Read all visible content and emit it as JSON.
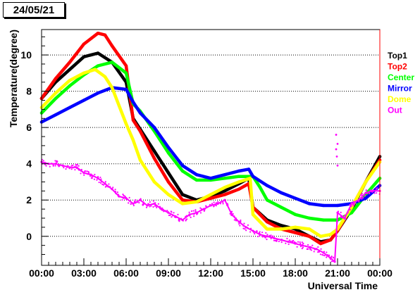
{
  "date_label": "24/05/21",
  "chart_data": {
    "type": "scatter",
    "title": "",
    "xlabel": "Universal Time",
    "ylabel": "Temperature(degree)",
    "xlim": [
      0,
      24
    ],
    "ylim": [
      -1.6,
      11.4
    ],
    "grid": "horizontal dotted",
    "x_ticks": [
      0,
      3,
      6,
      9,
      12,
      15,
      18,
      21,
      24
    ],
    "x_tick_labels": [
      "00:00",
      "03:00",
      "06:00",
      "09:00",
      "12:00",
      "15:00",
      "18:00",
      "21:00",
      "00:00"
    ],
    "y_ticks": [
      0,
      2,
      4,
      6,
      8,
      10
    ],
    "y_tick_labels": [
      "0",
      "2",
      "4",
      "6",
      "8",
      "10"
    ],
    "legend_position": "right",
    "series": [
      {
        "name": "Top1",
        "color": "#000000",
        "x": [
          0,
          1,
          2,
          3,
          4,
          5,
          6,
          6.5,
          7,
          8,
          9,
          10,
          11,
          12,
          13,
          14,
          14.7,
          15,
          16,
          17,
          18,
          19,
          19.8,
          20.5,
          21,
          22,
          23,
          24
        ],
        "y": [
          7.6,
          8.5,
          9.2,
          9.9,
          10.1,
          9.6,
          8.5,
          6.5,
          5.9,
          4.7,
          3.5,
          2.3,
          2.0,
          2.2,
          2.5,
          2.9,
          3.2,
          1.6,
          0.9,
          0.6,
          0.4,
          0.0,
          -0.3,
          -0.2,
          0.3,
          1.5,
          3.0,
          4.4
        ]
      },
      {
        "name": "Top2",
        "color": "#ff0000",
        "x": [
          0,
          1,
          2,
          3,
          4,
          4.5,
          5,
          6,
          6.5,
          7,
          8,
          9,
          10,
          11,
          12,
          13,
          14,
          14.7,
          15,
          16,
          17,
          18,
          19,
          19.8,
          20.5,
          21,
          22,
          23,
          24
        ],
        "y": [
          7.6,
          8.7,
          9.6,
          10.6,
          11.2,
          11.1,
          10.5,
          9.4,
          6.4,
          5.8,
          4.3,
          3.0,
          2.0,
          1.9,
          2.1,
          2.3,
          2.6,
          2.9,
          1.6,
          0.8,
          0.4,
          0.2,
          0.0,
          -0.4,
          -0.2,
          0.3,
          1.6,
          3.0,
          4.2
        ]
      },
      {
        "name": "Center",
        "color": "#00ff00",
        "x": [
          0,
          1,
          2,
          3,
          4,
          5,
          6,
          6.5,
          7,
          8,
          9,
          10,
          11,
          12,
          13,
          14,
          15,
          15.5,
          16,
          17,
          18,
          19,
          20,
          21,
          22,
          23,
          24
        ],
        "y": [
          6.8,
          7.6,
          8.3,
          8.9,
          9.4,
          9.6,
          9.0,
          7.3,
          6.9,
          5.8,
          4.6,
          3.6,
          3.1,
          3.1,
          3.2,
          3.3,
          3.3,
          2.7,
          2.0,
          1.6,
          1.2,
          1.0,
          0.9,
          0.9,
          1.3,
          2.3,
          3.2
        ]
      },
      {
        "name": "Mirror",
        "color": "#0000ff",
        "x": [
          0,
          1,
          2,
          3,
          4,
          5,
          6,
          6.5,
          7,
          8,
          9,
          10,
          11,
          12,
          13,
          14,
          14.7,
          15,
          16,
          17,
          18,
          19,
          20,
          21,
          22,
          23,
          24
        ],
        "y": [
          6.3,
          6.7,
          7.1,
          7.5,
          7.9,
          8.2,
          8.1,
          7.4,
          6.8,
          6.0,
          4.9,
          3.9,
          3.4,
          3.2,
          3.4,
          3.6,
          3.7,
          3.3,
          2.8,
          2.4,
          2.1,
          1.8,
          1.7,
          1.7,
          1.8,
          2.1,
          2.8
        ]
      },
      {
        "name": "Dome",
        "color": "#ffff00",
        "x": [
          0,
          1,
          2,
          3,
          3.8,
          4.5,
          5,
          6,
          6.5,
          7,
          8,
          9,
          10,
          11,
          12,
          13,
          14,
          14.8,
          15,
          16,
          17,
          18,
          19,
          19.8,
          20.5,
          21,
          22,
          23,
          24
        ],
        "y": [
          7.1,
          7.9,
          8.6,
          9.0,
          9.2,
          8.8,
          8.2,
          6.2,
          5.3,
          4.2,
          3.0,
          2.3,
          1.8,
          1.9,
          2.3,
          2.7,
          3.0,
          3.2,
          1.2,
          0.4,
          0.4,
          0.5,
          0.4,
          0.0,
          0.1,
          0.4,
          1.6,
          3.0,
          4.1
        ]
      },
      {
        "name": "Out",
        "color": "#ff00ff",
        "x": [
          0,
          0.5,
          1,
          1.5,
          2,
          2.5,
          3,
          3.5,
          4,
          4.5,
          5,
          5.5,
          6,
          6.5,
          7,
          7.5,
          8,
          8.5,
          9,
          9.5,
          10,
          10.5,
          11,
          11.5,
          12,
          12.5,
          13,
          13.5,
          14,
          14.5,
          15,
          15.5,
          16,
          16.5,
          17,
          17.5,
          18,
          18.5,
          19,
          19.5,
          20,
          20.5,
          20.8,
          21,
          21.5,
          22,
          22.5,
          23,
          23.5,
          24
        ],
        "y": [
          4.1,
          4.0,
          4.0,
          3.9,
          3.8,
          3.8,
          3.5,
          3.4,
          3.2,
          2.9,
          2.6,
          2.2,
          2.1,
          1.8,
          2.0,
          1.7,
          1.8,
          1.5,
          1.3,
          1.1,
          0.9,
          1.2,
          1.3,
          1.5,
          1.7,
          1.8,
          2.0,
          1.2,
          0.8,
          0.5,
          0.3,
          0.1,
          0.0,
          -0.1,
          -0.2,
          -0.3,
          -0.4,
          -0.5,
          -0.6,
          -0.7,
          -0.9,
          -1.2,
          -1.4,
          1.3,
          1.0,
          1.8,
          2.0,
          2.4,
          2.5,
          2.5
        ]
      }
    ],
    "out_outliers": {
      "x": [
        20.9,
        20.9,
        20.95,
        21.0,
        21.0
      ],
      "y": [
        5.6,
        4.8,
        4.4,
        5.1,
        3.9
      ]
    }
  }
}
